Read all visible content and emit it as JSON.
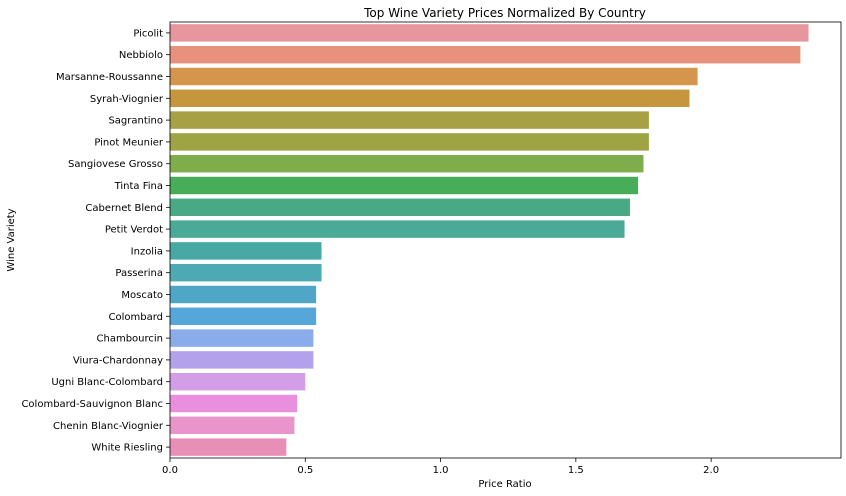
{
  "chart_data": {
    "type": "bar",
    "orientation": "horizontal",
    "title": "Top Wine Variety Prices Normalized By Country",
    "xlabel": "Price Ratio",
    "ylabel": "Wine Variety",
    "xlim": [
      0,
      2.48
    ],
    "xticks": [
      0.0,
      0.5,
      1.0,
      1.5,
      2.0
    ],
    "xtick_labels": [
      "0.0",
      "0.5",
      "1.0",
      "1.5",
      "2.0"
    ],
    "grid": false,
    "categories": [
      "Picolit",
      "Nebbiolo",
      "Marsanne-Roussanne",
      "Syrah-Viognier",
      "Sagrantino",
      "Pinot Meunier",
      "Sangiovese Grosso",
      "Tinta Fina",
      "Cabernet Blend",
      "Petit Verdot",
      "Inzolia",
      "Passerina",
      "Moscato",
      "Colombard",
      "Chambourcin",
      "Viura-Chardonnay",
      "Ugni Blanc-Colombard",
      "Colombard-Sauvignon Blanc",
      "Chenin Blanc-Viognier",
      "White Riesling"
    ],
    "values": [
      2.36,
      2.33,
      1.95,
      1.92,
      1.77,
      1.77,
      1.75,
      1.73,
      1.7,
      1.68,
      0.56,
      0.56,
      0.54,
      0.54,
      0.53,
      0.53,
      0.5,
      0.47,
      0.46,
      0.43
    ],
    "colors": [
      "#e8969e",
      "#e8917c",
      "#d6954c",
      "#c5963e",
      "#a8a044",
      "#9ea444",
      "#7fad4c",
      "#48ad58",
      "#49a985",
      "#4aa997",
      "#48a8a3",
      "#4daab4",
      "#4fa6c6",
      "#56a7d9",
      "#8aacea",
      "#b3a1ec",
      "#d39de8",
      "#ea8ee0",
      "#e994cb",
      "#e88fb7"
    ]
  }
}
